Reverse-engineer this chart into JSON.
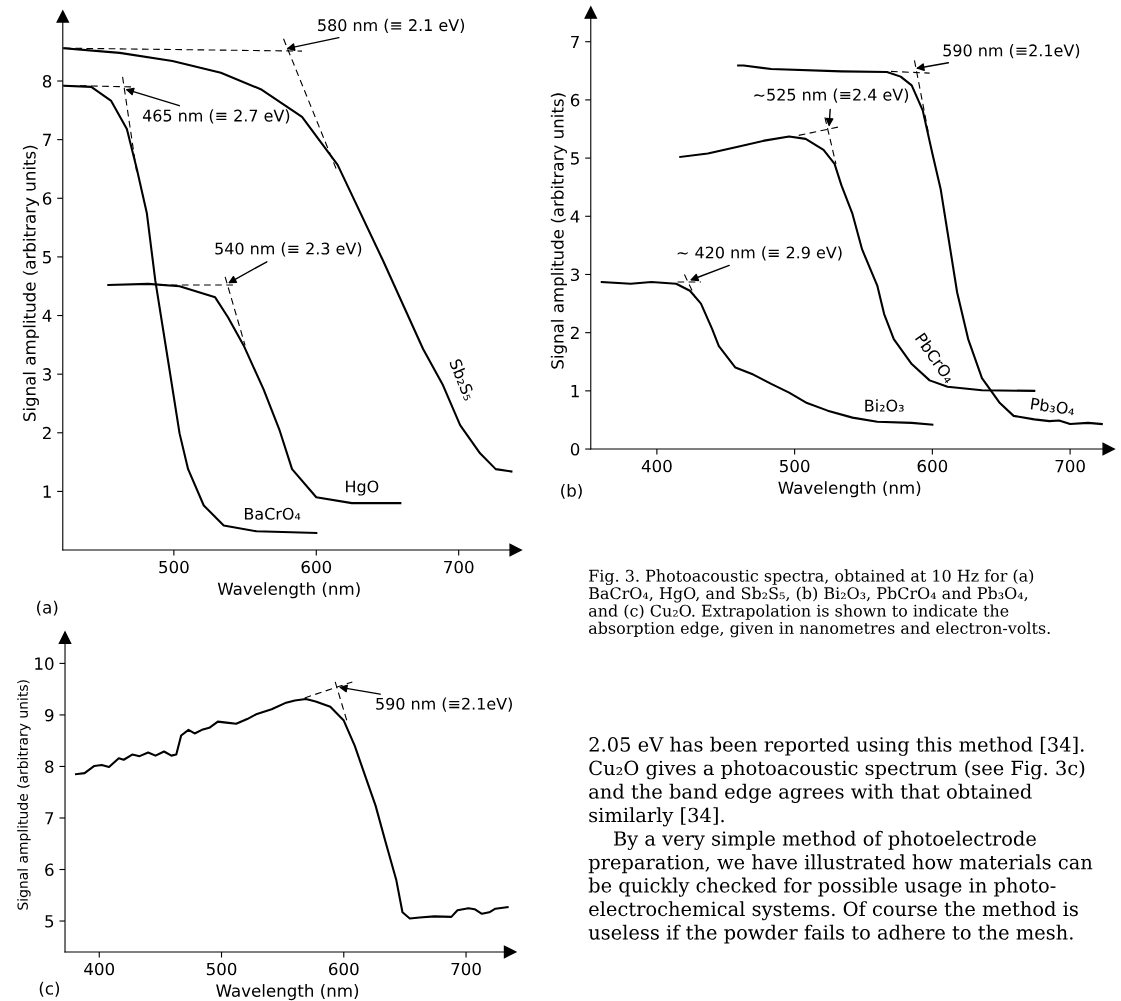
{
  "chart_data": [
    {
      "type": "line",
      "xlabel": "Wavelength (nm)",
      "ylabel": "Signal amplitude (arbitrary units)",
      "xlim": [
        422,
        740
      ],
      "ylim": [
        0,
        9.1
      ],
      "xticks": [
        500,
        600,
        700
      ],
      "yticks": [
        1,
        2,
        3,
        4,
        5,
        6,
        7,
        8
      ],
      "grid": false,
      "legend": false,
      "marker": "none",
      "line_style": "solid",
      "series": [
        {
          "color": "#000000",
          "x": [
            423,
            442,
            456,
            467,
            474,
            481,
            487,
            496,
            504,
            510,
            521,
            535,
            558,
            600
          ],
          "values": [
            7.92,
            7.9,
            7.66,
            7.18,
            6.5,
            5.75,
            4.59,
            3.22,
            1.99,
            1.38,
            0.76,
            0.42,
            0.32,
            0.29
          ]
        },
        {
          "color": "#000000",
          "x": [
            454,
            482,
            504,
            529,
            538,
            549,
            563,
            574,
            583,
            600,
            625,
            659
          ],
          "values": [
            4.52,
            4.54,
            4.5,
            4.31,
            3.97,
            3.49,
            2.74,
            2.06,
            1.38,
            0.9,
            0.8,
            0.8
          ]
        },
        {
          "color": "#000000",
          "x": [
            423,
            462,
            499,
            533,
            561,
            590,
            615,
            647,
            661,
            675,
            689,
            701,
            715,
            726,
            737
          ],
          "values": [
            8.56,
            8.48,
            8.34,
            8.14,
            7.86,
            7.39,
            6.57,
            4.93,
            4.18,
            3.43,
            2.81,
            2.13,
            1.65,
            1.38,
            1.34
          ]
        },
        {
          "color": "#000000",
          "line_style": "dashed",
          "x": [
            423,
            590
          ],
          "values": [
            8.56,
            8.51
          ]
        },
        {
          "color": "#000000",
          "line_style": "dashed",
          "x": [
            577,
            614
          ],
          "values": [
            8.72,
            6.5
          ]
        },
        {
          "color": "#000000",
          "line_style": "dashed",
          "x": [
            434,
            471
          ],
          "values": [
            7.92,
            7.9
          ]
        },
        {
          "color": "#000000",
          "line_style": "dashed",
          "x": [
            464,
            474
          ],
          "values": [
            8.07,
            6.43
          ]
        },
        {
          "color": "#000000",
          "line_style": "dashed",
          "x": [
            490,
            544
          ],
          "values": [
            4.52,
            4.52
          ]
        },
        {
          "color": "#000000",
          "line_style": "dashed",
          "x": [
            536,
            550
          ],
          "values": [
            4.66,
            3.49
          ]
        }
      ],
      "annotations": [
        {
          "text": "580 nm (≡ 2.1 eV)",
          "x": 579,
          "y": 8.55
        },
        {
          "text": "465 nm (≡ 2.7 eV)",
          "x": 466,
          "y": 7.86
        },
        {
          "text": "540 nm (≡ 2.3 eV)",
          "x": 538,
          "y": 4.55
        },
        {
          "text": "BaCrO₄",
          "x": 569,
          "y": 0.31
        },
        {
          "text": "HgO",
          "x": 632,
          "y": 0.8
        },
        {
          "text": "Sb₂S₅",
          "x": 690,
          "y": 2.9
        },
        "(a)"
      ]
    },
    {
      "type": "line",
      "xlabel": "Wavelength (nm)",
      "ylabel": "Signal amplitude (arbitrary units)",
      "xlim": [
        352,
        728
      ],
      "ylim": [
        0,
        7.5
      ],
      "xticks": [
        400,
        500,
        600,
        700
      ],
      "yticks": [
        0,
        1,
        2,
        3,
        4,
        5,
        6,
        7
      ],
      "grid": false,
      "legend": false,
      "marker": "none",
      "line_style": "solid",
      "series": [
        {
          "color": "#000000",
          "x": [
            360,
            381,
            396,
            414,
            424,
            432,
            440,
            445,
            457,
            470,
            483,
            496,
            509,
            524,
            542,
            560,
            585,
            600
          ],
          "values": [
            2.87,
            2.84,
            2.87,
            2.84,
            2.72,
            2.5,
            2.07,
            1.77,
            1.4,
            1.28,
            1.12,
            0.97,
            0.79,
            0.66,
            0.54,
            0.47,
            0.45,
            0.42
          ]
        },
        {
          "color": "#000000",
          "x": [
            417,
            437,
            458,
            478,
            496,
            508,
            521,
            529,
            534,
            542,
            549,
            560,
            565,
            572,
            585,
            598,
            611,
            636,
            674
          ],
          "values": [
            5.02,
            5.08,
            5.19,
            5.3,
            5.37,
            5.33,
            5.14,
            4.9,
            4.53,
            4.04,
            3.43,
            2.81,
            2.32,
            1.89,
            1.46,
            1.18,
            1.07,
            1.01,
            1.0
          ]
        },
        {
          "color": "#000000",
          "x": [
            459,
            463,
            483,
            534,
            567,
            577,
            585,
            593,
            600,
            606,
            611,
            618,
            626,
            636,
            649,
            659,
            674,
            685,
            692,
            700,
            713,
            723
          ],
          "values": [
            6.59,
            6.59,
            6.53,
            6.49,
            6.48,
            6.4,
            6.25,
            5.82,
            5.08,
            4.47,
            3.73,
            2.69,
            1.89,
            1.22,
            0.79,
            0.57,
            0.51,
            0.48,
            0.49,
            0.43,
            0.45,
            0.43
          ]
        },
        {
          "color": "#000000",
          "line_style": "dashed",
          "x": [
            570,
            598
          ],
          "values": [
            6.49,
            6.46
          ]
        },
        {
          "color": "#000000",
          "line_style": "dashed",
          "x": [
            587,
            597
          ],
          "values": [
            6.68,
            5.45
          ]
        },
        {
          "color": "#000000",
          "line_style": "dashed",
          "x": [
            503,
            533
          ],
          "values": [
            5.39,
            5.54
          ]
        },
        {
          "color": "#000000",
          "line_style": "dashed",
          "x": [
            522,
            530
          ],
          "values": [
            5.7,
            4.9
          ]
        },
        {
          "color": "#000000",
          "line_style": "dashed",
          "x": [
            415,
            432
          ],
          "values": [
            2.87,
            2.87
          ]
        },
        {
          "color": "#000000",
          "line_style": "dashed",
          "x": [
            420,
            428
          ],
          "values": [
            3.0,
            2.6
          ]
        }
      ],
      "annotations": [
        {
          "text": "590 nm (≡2.1eV)",
          "x": 588,
          "y": 6.54
        },
        {
          "text": "~525 nm (≡2.4 eV)",
          "x": 525,
          "y": 5.54
        },
        {
          "text": "~ 420 nm (≡ 2.9 eV)",
          "x": 424,
          "y": 2.9
        },
        {
          "text": "Bi₂O₃",
          "x": 565,
          "y": 0.46
        },
        {
          "text": "PbCrO₄",
          "x": 585,
          "y": 1.46
        },
        {
          "text": "Pb₃O₄",
          "x": 687,
          "y": 0.47
        },
        "(b)"
      ]
    },
    {
      "type": "line",
      "xlabel": "Wavelength (nm)",
      "ylabel": "Signal amplitude (arbitrary units)",
      "xlim": [
        372,
        736
      ],
      "ylim": [
        4.4,
        10.5
      ],
      "xticks": [
        400,
        500,
        600,
        700
      ],
      "yticks": [
        5,
        6,
        7,
        8,
        9,
        10
      ],
      "grid": false,
      "legend": false,
      "marker": "none",
      "line_style": "solid",
      "series": [
        {
          "color": "#000000",
          "x": [
            381,
            388,
            396,
            402,
            408,
            416,
            420,
            427,
            433,
            440,
            446,
            453,
            459,
            463,
            467,
            473,
            478,
            484,
            490,
            497,
            504,
            512,
            521,
            529,
            541,
            552,
            560,
            569,
            577,
            589,
            600,
            609,
            617,
            626,
            634,
            643,
            648,
            654,
            662,
            674,
            688,
            693,
            702,
            707,
            713,
            719,
            724,
            734
          ],
          "values": [
            7.85,
            7.87,
            8.01,
            8.03,
            7.99,
            8.16,
            8.13,
            8.23,
            8.2,
            8.27,
            8.21,
            8.29,
            8.21,
            8.23,
            8.6,
            8.71,
            8.64,
            8.71,
            8.75,
            8.87,
            8.85,
            8.83,
            8.92,
            9.02,
            9.11,
            9.23,
            9.28,
            9.31,
            9.26,
            9.16,
            8.89,
            8.4,
            7.85,
            7.24,
            6.55,
            5.79,
            5.17,
            5.05,
            5.07,
            5.09,
            5.08,
            5.21,
            5.25,
            5.23,
            5.14,
            5.17,
            5.24,
            5.27
          ]
        },
        {
          "color": "#000000",
          "line_style": "dashed",
          "x": [
            568,
            607
          ],
          "values": [
            9.33,
            9.64
          ]
        },
        {
          "color": "#000000",
          "line_style": "dashed",
          "x": [
            593,
            603
          ],
          "values": [
            9.64,
            8.85
          ]
        }
      ],
      "annotations": [
        {
          "text": "590 nm (≡2.1eV)",
          "x": 596,
          "y": 9.54
        },
        "(c)"
      ]
    },
    {
      "type": "other",
      "annotations": [
        "Fig. 3. Photoacoustic spectra, obtained at 10 Hz for (a)\nBaCrO₄, HgO, and Sb₂S₅, (b) Bi₂O₃, PbCrO₄ and Pb₃O₄,\nand (c) Cu₂O. Extrapolation is shown to indicate the\nabsorption edge, given in nanometres and electron-volts.",
        "2.05 eV has been reported using this method [34].\nCu₂O gives a photoacoustic spectrum (see Fig. 3c)\nand the band edge agrees with that obtained\nsimilarly [34].\n    By a very simple method of photoelectrode\npreparation, we have illustrated how materials can\nbe quickly checked for possible usage in photo-\nelectrochemical systems. Of course the method is\nuseless if the powder fails to adhere to the mesh."
      ]
    }
  ]
}
